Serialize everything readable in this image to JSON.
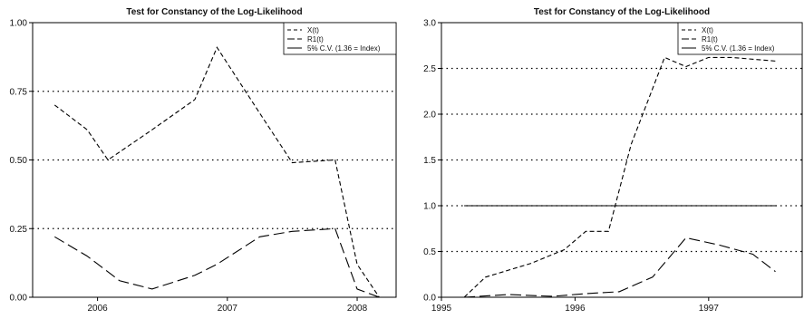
{
  "chart_data": [
    {
      "type": "line",
      "title": "Test for Constancy of the Log-Likelihood",
      "xlabel": "",
      "ylabel": "",
      "xlim": [
        2005.5,
        2008.3
      ],
      "ylim": [
        0,
        1
      ],
      "x_ticks": [
        2006,
        2007,
        2008
      ],
      "x_tick_labels": [
        "2006",
        "2007",
        "2008"
      ],
      "y_ticks": [
        0,
        0.25,
        0.5,
        0.75,
        1
      ],
      "y_tick_labels": [
        "0.00",
        "0.25",
        "0.50",
        "0.75",
        "1.00"
      ],
      "reference_lines": [
        0.25,
        0.5,
        0.75
      ],
      "legend_position": "top-right",
      "series": [
        {
          "name": "X(t)",
          "style": "short-dash",
          "x": [
            2005.67,
            2005.92,
            2006.08,
            2006.42,
            2006.75,
            2006.92,
            2007.25,
            2007.5,
            2007.83,
            2008.0,
            2008.17
          ],
          "y": [
            0.7,
            0.61,
            0.5,
            0.61,
            0.72,
            0.91,
            0.67,
            0.49,
            0.5,
            0.12,
            0.0
          ]
        },
        {
          "name": "R1(t)",
          "style": "long-dash",
          "x": [
            2005.67,
            2005.92,
            2006.17,
            2006.42,
            2006.75,
            2006.92,
            2007.25,
            2007.5,
            2007.83,
            2008.0,
            2008.17
          ],
          "y": [
            0.22,
            0.15,
            0.06,
            0.03,
            0.08,
            0.12,
            0.22,
            0.24,
            0.25,
            0.03,
            0.0
          ]
        },
        {
          "name": "5% C.V. (1.36 =  Index)",
          "style": "solid",
          "x": [],
          "y": []
        }
      ]
    },
    {
      "type": "line",
      "title": "Test for Constancy of the Log-Likelihood",
      "xlabel": "",
      "ylabel": "",
      "xlim": [
        1995.0,
        1997.7
      ],
      "ylim": [
        0,
        3
      ],
      "x_ticks": [
        1995,
        1996,
        1997
      ],
      "x_tick_labels": [
        "1995",
        "1996",
        "1997"
      ],
      "y_ticks": [
        0,
        0.5,
        1,
        1.5,
        2,
        2.5,
        3
      ],
      "y_tick_labels": [
        "0.0",
        "0.5",
        "1.0",
        "1.5",
        "2.0",
        "2.5",
        "3.0"
      ],
      "reference_lines": [
        0.5,
        1.0,
        1.5,
        2.0,
        2.5
      ],
      "legend_position": "top-right",
      "series": [
        {
          "name": "X(t)",
          "style": "short-dash",
          "x": [
            1995.17,
            1995.33,
            1995.67,
            1995.92,
            1996.08,
            1996.25,
            1996.42,
            1996.67,
            1996.83,
            1997.0,
            1997.17,
            1997.5
          ],
          "y": [
            0.0,
            0.22,
            0.37,
            0.52,
            0.72,
            0.72,
            1.67,
            2.62,
            2.52,
            2.62,
            2.62,
            2.58
          ]
        },
        {
          "name": "R1(t)",
          "style": "long-dash",
          "x": [
            1995.17,
            1995.5,
            1995.83,
            1996.08,
            1996.33,
            1996.58,
            1996.83,
            1997.08,
            1997.33,
            1997.5
          ],
          "y": [
            0.0,
            0.03,
            0.01,
            0.04,
            0.06,
            0.22,
            0.65,
            0.57,
            0.47,
            0.28
          ]
        },
        {
          "name": "5% C.V. (1.36 =  Index)",
          "style": "solid",
          "x": [
            1995.17,
            1997.5
          ],
          "y": [
            1.0,
            1.0
          ]
        }
      ]
    }
  ]
}
